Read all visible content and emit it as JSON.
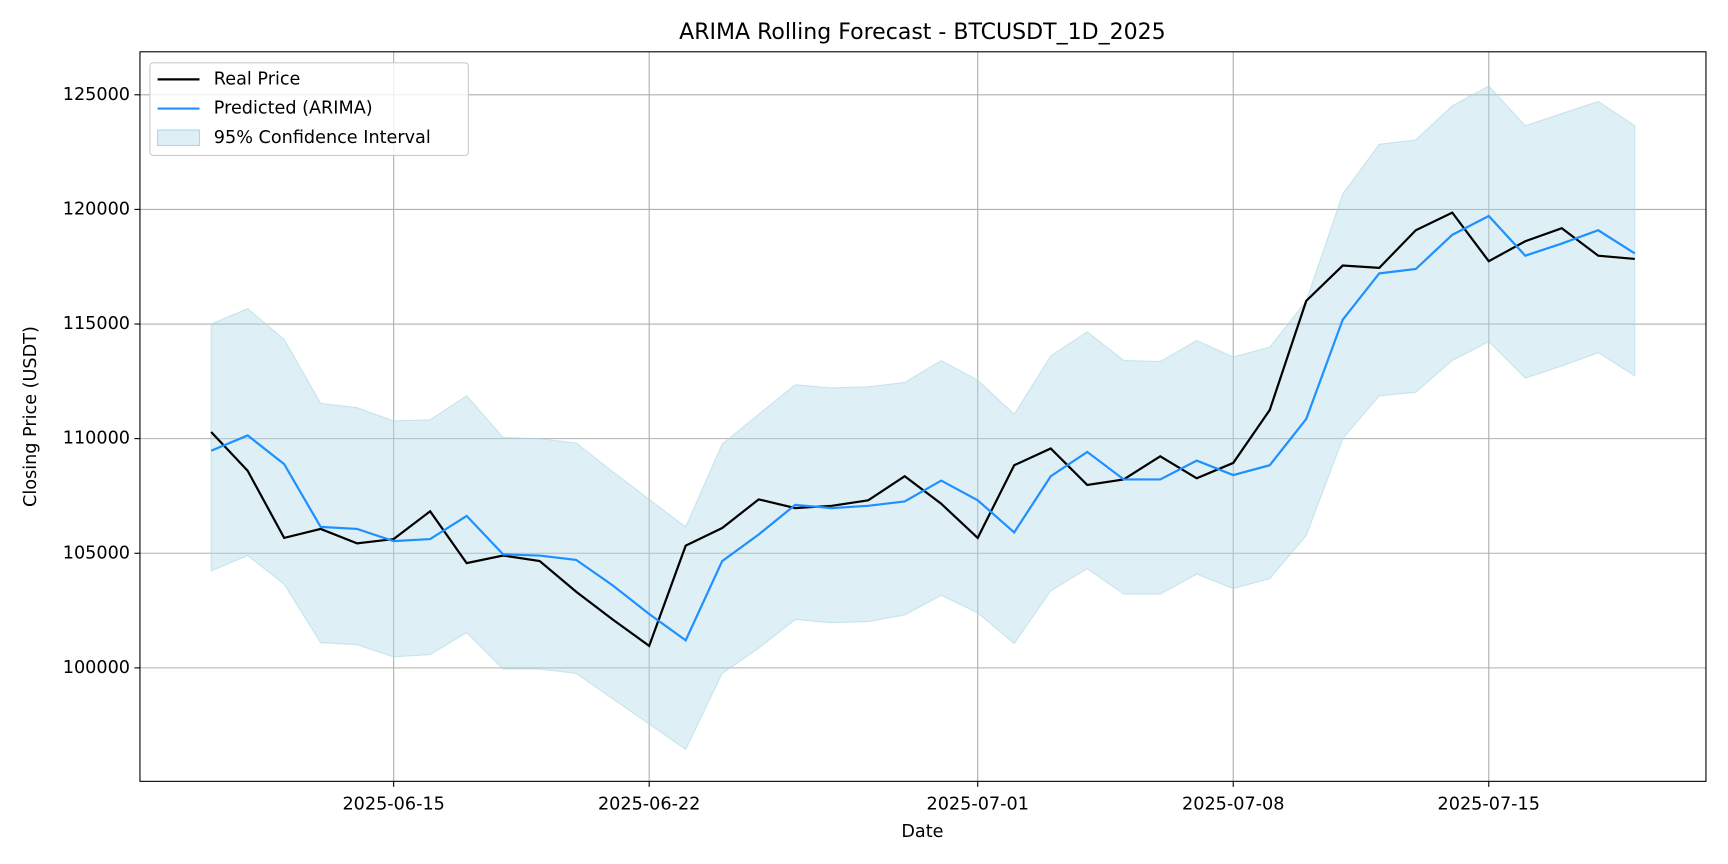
{
  "chart_data": {
    "type": "line",
    "title": "ARIMA Rolling Forecast - BTCUSDT_1D_2025",
    "xlabel": "Date",
    "ylabel": "Closing Price (USDT)",
    "x": [
      "2025-06-10",
      "2025-06-11",
      "2025-06-12",
      "2025-06-13",
      "2025-06-14",
      "2025-06-15",
      "2025-06-16",
      "2025-06-17",
      "2025-06-18",
      "2025-06-19",
      "2025-06-20",
      "2025-06-21",
      "2025-06-22",
      "2025-06-23",
      "2025-06-24",
      "2025-06-25",
      "2025-06-26",
      "2025-06-27",
      "2025-06-28",
      "2025-06-29",
      "2025-06-30",
      "2025-07-01",
      "2025-07-02",
      "2025-07-03",
      "2025-07-04",
      "2025-07-05",
      "2025-07-06",
      "2025-07-07",
      "2025-07-08",
      "2025-07-09",
      "2025-07-10",
      "2025-07-11",
      "2025-07-12",
      "2025-07-13",
      "2025-07-14",
      "2025-07-15",
      "2025-07-16",
      "2025-07-17",
      "2025-07-18",
      "2025-07-19"
    ],
    "series": [
      {
        "name": "Real Price",
        "color": "#000000",
        "values": [
          110290,
          108600,
          105670,
          106060,
          105430,
          105620,
          106830,
          104570,
          104900,
          104660,
          103320,
          102110,
          100960,
          105330,
          106100,
          107350,
          106970,
          107070,
          107310,
          108360,
          107160,
          105670,
          108840,
          109570,
          107980,
          108220,
          109230,
          108270,
          108940,
          111250,
          116010,
          117550,
          117450,
          119090,
          119860,
          117740,
          118610,
          119180,
          117980,
          117840
        ]
      },
      {
        "name": "Predicted (ARIMA)",
        "color": "#1e90ff",
        "values": [
          109470,
          110140,
          108890,
          106150,
          106060,
          105530,
          105620,
          106630,
          104950,
          104900,
          104710,
          103600,
          102350,
          101200,
          104660,
          105820,
          107110,
          106970,
          107070,
          107260,
          108170,
          107310,
          105910,
          108360,
          109420,
          108220,
          108220,
          109040,
          108410,
          108840,
          110860,
          115190,
          117210,
          117400,
          118890,
          119710,
          117980,
          118510,
          119090,
          118080
        ]
      }
    ],
    "interval": {
      "name": "95% Confidence Interval",
      "color": "#add8e6",
      "upper": [
        115000,
        115670,
        114330,
        111540,
        111350,
        110770,
        110820,
        111870,
        110050,
        110000,
        109810,
        108560,
        107350,
        106150,
        109760,
        111060,
        112350,
        112210,
        112260,
        112450,
        113410,
        112550,
        111060,
        113610,
        114660,
        113410,
        113360,
        114280,
        113560,
        113990,
        116010,
        120670,
        122840,
        123030,
        124520,
        125380,
        123650,
        124180,
        124710,
        123650
      ],
      "lower": [
        104230,
        104900,
        103650,
        101100,
        101010,
        100480,
        100580,
        101540,
        99950,
        99950,
        99760,
        98650,
        97550,
        96440,
        99760,
        100860,
        102110,
        101970,
        102020,
        102310,
        103170,
        102400,
        101060,
        103360,
        104330,
        103220,
        103220,
        104090,
        103460,
        103890,
        105770,
        110000,
        111870,
        112020,
        113410,
        114230,
        112640,
        113170,
        113750,
        112740
      ]
    },
    "xlim": [
      "2025-06-08T01:12:00Z",
      "2025-07-20T22:48:00Z"
    ],
    "xticks": [
      "2025-06-15",
      "2025-06-22",
      "2025-07-01",
      "2025-07-08",
      "2025-07-15"
    ],
    "ylim": [
      95050,
      126875
    ],
    "yticks": [
      100000,
      105000,
      110000,
      115000,
      120000,
      125000
    ],
    "grid": true,
    "legend": "upper left"
  }
}
